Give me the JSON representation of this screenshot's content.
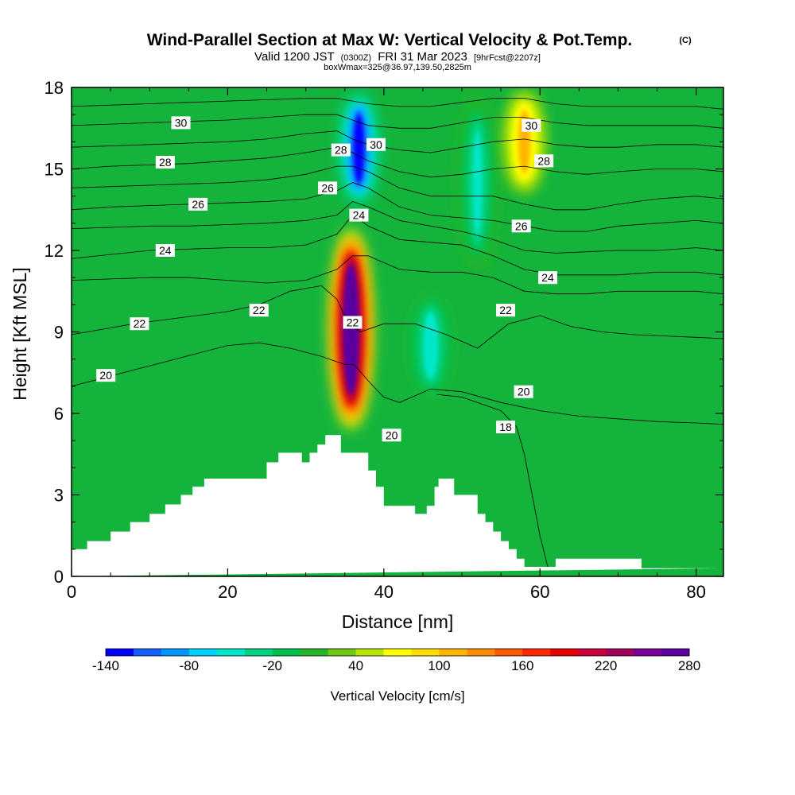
{
  "chart_data": {
    "type": "heatmap",
    "title": "Wind-Parallel Section at Max W: Vertical Velocity & Pot.Temp.",
    "title_mark": "(C)",
    "subtitle_parts": [
      "Valid 1200 JST",
      "(0300Z)",
      "FRI 31 Mar 2023",
      "[9hrFcst@2207z]"
    ],
    "subtitle2": "boxWmax=325@36.97,139.50,2825m",
    "xlabel": "Distance [nm]",
    "ylabel": "Height [Kft MSL]",
    "xlim": [
      0,
      83.5
    ],
    "ylim": [
      0,
      18
    ],
    "x_ticks": [
      0,
      20,
      40,
      60,
      80
    ],
    "x_tick_labels": [
      "0",
      "20",
      "40",
      "60",
      "80"
    ],
    "y_ticks": [
      0,
      3,
      6,
      9,
      12,
      15,
      18
    ],
    "y_tick_labels": [
      "0",
      "3",
      "6",
      "9",
      "12",
      "15",
      "18"
    ],
    "grid": false,
    "colorbar": {
      "label": "Vertical Velocity [cm/s]",
      "tick_values": [
        -140,
        -80,
        -20,
        40,
        100,
        160,
        220,
        280
      ],
      "tick_labels": [
        "-140",
        "-80",
        "-20",
        "40",
        "100",
        "160",
        "220",
        "280"
      ],
      "colors": [
        "#0000ff",
        "#1460ff",
        "#0096ff",
        "#00d2ff",
        "#00e6c8",
        "#00d282",
        "#00c050",
        "#28b428",
        "#6ec814",
        "#b4e600",
        "#ffff00",
        "#ffdc00",
        "#ffb400",
        "#ff8c00",
        "#ff5a00",
        "#ff2800",
        "#e60000",
        "#c8003c",
        "#a0005a",
        "#780096",
        "#5a00a0"
      ]
    },
    "field": {
      "background": "#14b43c",
      "features": [
        {
          "kind": "updraft",
          "x": 35.8,
          "bottom": 5.2,
          "top": 13.0,
          "peak": 325
        },
        {
          "kind": "downdraft",
          "x": 36.8,
          "bottom": 13.5,
          "top": 18.0,
          "peak": -140
        },
        {
          "kind": "downdraft",
          "x": 46,
          "bottom": 6.5,
          "top": 10.5,
          "peak": -60
        },
        {
          "kind": "downdraft",
          "x": 52,
          "bottom": 11,
          "top": 18.0,
          "peak": -50
        },
        {
          "kind": "updraft",
          "x": 58,
          "bottom": 14,
          "top": 18.0,
          "peak": 100
        }
      ]
    },
    "terrain": {
      "x": [
        0,
        2,
        2,
        5,
        5,
        7.5,
        7.5,
        10,
        10,
        12,
        12,
        14,
        14,
        15.5,
        15.5,
        17,
        17,
        25,
        25,
        26.5,
        26.5,
        28,
        28,
        29.5,
        29.5,
        30.5,
        30.5,
        31.5,
        31.5,
        32.5,
        32.5,
        33.5,
        33.5,
        34.5,
        34.5,
        38,
        38,
        39,
        39,
        40,
        40,
        44,
        44,
        45.5,
        45.5,
        46.5,
        46.5,
        47,
        47,
        48,
        48,
        49,
        49,
        52,
        52,
        53,
        53,
        54,
        54,
        55,
        55,
        56,
        56,
        57,
        57,
        58,
        58,
        60,
        60,
        62,
        62,
        73,
        73,
        83,
        83,
        83.5
      ],
      "z": [
        1.0,
        1.0,
        1.3,
        1.3,
        1.65,
        1.65,
        2.0,
        2.0,
        2.3,
        2.3,
        2.65,
        2.65,
        3.0,
        3.0,
        3.3,
        3.3,
        3.6,
        3.6,
        4.2,
        4.2,
        4.55,
        4.55,
        4.55,
        4.55,
        4.2,
        4.2,
        4.55,
        4.55,
        4.85,
        4.85,
        5.2,
        5.2,
        5.2,
        5.2,
        4.55,
        4.55,
        3.9,
        3.9,
        3.3,
        3.3,
        2.6,
        2.6,
        2.3,
        2.3,
        2.6,
        2.6,
        3.3,
        3.3,
        3.6,
        3.6,
        3.6,
        3.6,
        3.0,
        3.0,
        2.3,
        2.3,
        2.0,
        2.0,
        1.65,
        1.65,
        1.3,
        1.3,
        1.0,
        1.0,
        0.65,
        0.65,
        0.35,
        0.35,
        0.35,
        0.35,
        0.65,
        0.65,
        0.3,
        0.3
      ]
    },
    "contours": [
      {
        "level": 18,
        "label": "18",
        "x": [
          61,
          60,
          59,
          58,
          57,
          55,
          50,
          46.8
        ],
        "z": [
          0.35,
          1.5,
          3.0,
          4.5,
          5.5,
          6.1,
          6.6,
          6.7
        ]
      },
      {
        "level": 20,
        "label": "20",
        "x": [
          0,
          4,
          8,
          12,
          16,
          20,
          24,
          28,
          32,
          35,
          36.2,
          38,
          40,
          42,
          46,
          50,
          55,
          60,
          65,
          70,
          75,
          80,
          83.5
        ],
        "z": [
          7.0,
          7.3,
          7.6,
          7.9,
          8.2,
          8.5,
          8.6,
          8.4,
          8.1,
          7.8,
          7.8,
          7.2,
          6.6,
          6.4,
          6.9,
          6.8,
          6.4,
          6.1,
          5.9,
          5.8,
          5.7,
          5.65,
          5.6
        ]
      },
      {
        "level": 22,
        "label": "22",
        "x": [
          0,
          4,
          8,
          12,
          16,
          20,
          24,
          28,
          32,
          34,
          35.5,
          37,
          40,
          44,
          48,
          52,
          56,
          60,
          64,
          68,
          72,
          76,
          80,
          83.5
        ],
        "z": [
          8.9,
          9.1,
          9.3,
          9.45,
          9.6,
          9.75,
          10.0,
          10.5,
          10.7,
          10.2,
          9.3,
          9.0,
          9.3,
          9.3,
          8.9,
          8.4,
          9.3,
          9.6,
          9.2,
          9.0,
          8.9,
          8.85,
          8.8,
          8.75
        ]
      },
      {
        "level": 23,
        "label": "",
        "x": [
          0,
          5,
          10,
          15,
          20,
          25,
          30,
          34,
          36,
          38,
          42,
          46,
          50,
          54,
          58,
          62,
          66,
          70,
          75,
          80,
          83.5
        ],
        "z": [
          10.9,
          10.95,
          11.0,
          11.0,
          10.9,
          10.8,
          10.9,
          11.3,
          11.8,
          11.8,
          11.3,
          11.2,
          11.2,
          11.0,
          10.5,
          10.4,
          10.4,
          10.5,
          10.5,
          10.5,
          10.4
        ]
      },
      {
        "level": 24,
        "label": "24",
        "x": [
          0,
          5,
          10,
          15,
          20,
          25,
          30,
          34,
          36,
          38,
          42,
          46,
          50,
          54,
          58,
          62,
          66,
          70,
          75,
          80,
          83.5
        ],
        "z": [
          11.7,
          11.85,
          12.0,
          12.05,
          12.1,
          12.1,
          12.2,
          12.6,
          13.3,
          12.9,
          12.4,
          12.3,
          12.2,
          11.8,
          11.3,
          11.1,
          11.1,
          11.1,
          11.2,
          11.2,
          11.1
        ]
      },
      {
        "level": 25,
        "label": "",
        "x": [
          0,
          5,
          10,
          15,
          20,
          25,
          30,
          34,
          36,
          38,
          42,
          46,
          50,
          54,
          58,
          62,
          66,
          70,
          75,
          80,
          83.5
        ],
        "z": [
          12.8,
          12.85,
          12.9,
          12.9,
          12.95,
          13.0,
          13.1,
          13.3,
          13.8,
          13.6,
          13.1,
          12.9,
          12.7,
          12.4,
          12.0,
          11.9,
          11.95,
          12.0,
          12.0,
          12.1,
          12.0
        ]
      },
      {
        "level": 26,
        "label": "26",
        "x": [
          0,
          5,
          10,
          15,
          20,
          25,
          30,
          34,
          36,
          38,
          42,
          46,
          50,
          54,
          58,
          62,
          66,
          70,
          75,
          80,
          83.5
        ],
        "z": [
          13.5,
          13.6,
          13.65,
          13.7,
          13.75,
          13.8,
          13.9,
          14.2,
          14.5,
          14.3,
          13.6,
          13.3,
          13.2,
          13.1,
          12.9,
          12.7,
          12.7,
          12.9,
          13.0,
          13.1,
          13.0
        ]
      },
      {
        "level": 27,
        "label": "",
        "x": [
          0,
          5,
          10,
          15,
          20,
          25,
          30,
          34,
          36,
          38,
          42,
          46,
          50,
          54,
          58,
          62,
          66,
          70,
          75,
          80,
          83.5
        ],
        "z": [
          14.3,
          14.35,
          14.4,
          14.45,
          14.5,
          14.6,
          14.8,
          15.1,
          15.1,
          14.9,
          14.3,
          14.0,
          14.0,
          14.0,
          13.7,
          13.5,
          13.5,
          13.7,
          13.9,
          14.0,
          13.9
        ]
      },
      {
        "level": 28,
        "label": "28",
        "x": [
          0,
          5,
          10,
          15,
          20,
          25,
          30,
          34,
          36,
          38,
          42,
          46,
          50,
          54,
          58,
          62,
          66,
          70,
          75,
          80,
          83.5
        ],
        "z": [
          15.0,
          15.1,
          15.15,
          15.2,
          15.3,
          15.4,
          15.6,
          15.8,
          15.6,
          15.3,
          14.9,
          14.7,
          14.8,
          15.0,
          15.1,
          14.9,
          14.8,
          14.9,
          15.0,
          15.0,
          14.9
        ]
      },
      {
        "level": 29,
        "label": "",
        "x": [
          0,
          5,
          10,
          15,
          20,
          25,
          30,
          34,
          36,
          38,
          42,
          46,
          50,
          54,
          58,
          62,
          66,
          70,
          75,
          80,
          83.5
        ],
        "z": [
          15.8,
          15.85,
          15.9,
          15.95,
          16.0,
          16.1,
          16.3,
          16.4,
          16.1,
          15.9,
          15.7,
          15.6,
          15.8,
          16.0,
          16.1,
          15.9,
          15.8,
          15.8,
          15.9,
          15.9,
          15.8
        ]
      },
      {
        "level": 30,
        "label": "30",
        "x": [
          0,
          5,
          10,
          15,
          20,
          25,
          30,
          34,
          36,
          38,
          42,
          46,
          50,
          54,
          58,
          62,
          66,
          70,
          75,
          80,
          83.5
        ],
        "z": [
          16.6,
          16.65,
          16.7,
          16.75,
          16.8,
          16.9,
          17.0,
          17.0,
          16.8,
          16.6,
          16.5,
          16.5,
          16.7,
          16.9,
          16.9,
          16.7,
          16.6,
          16.6,
          16.6,
          16.6,
          16.5
        ]
      },
      {
        "level": 31,
        "label": "",
        "x": [
          0,
          5,
          10,
          15,
          20,
          25,
          30,
          34,
          36,
          38,
          42,
          46,
          50,
          54,
          58,
          62,
          66,
          70,
          75,
          80,
          83.5
        ],
        "z": [
          17.3,
          17.35,
          17.4,
          17.45,
          17.5,
          17.55,
          17.6,
          17.6,
          17.5,
          17.4,
          17.3,
          17.3,
          17.45,
          17.6,
          17.6,
          17.4,
          17.3,
          17.3,
          17.3,
          17.3,
          17.2
        ]
      }
    ],
    "contour_labels": [
      {
        "text": "30",
        "x": 14.0,
        "z": 16.7
      },
      {
        "text": "28",
        "x": 12.0,
        "z": 15.25
      },
      {
        "text": "26",
        "x": 16.2,
        "z": 13.7
      },
      {
        "text": "24",
        "x": 12.0,
        "z": 12.0
      },
      {
        "text": "22",
        "x": 8.7,
        "z": 9.3
      },
      {
        "text": "20",
        "x": 4.4,
        "z": 7.4
      },
      {
        "text": "22",
        "x": 24.0,
        "z": 9.8
      },
      {
        "text": "26",
        "x": 32.8,
        "z": 14.3
      },
      {
        "text": "28",
        "x": 34.5,
        "z": 15.7
      },
      {
        "text": "24",
        "x": 36.8,
        "z": 13.3
      },
      {
        "text": "30",
        "x": 39.0,
        "z": 15.9
      },
      {
        "text": "22",
        "x": 36.0,
        "z": 9.35
      },
      {
        "text": "20",
        "x": 41.0,
        "z": 5.2
      },
      {
        "text": "30",
        "x": 58.9,
        "z": 16.6
      },
      {
        "text": "28",
        "x": 60.5,
        "z": 15.3
      },
      {
        "text": "26",
        "x": 57.6,
        "z": 12.9
      },
      {
        "text": "22",
        "x": 55.6,
        "z": 9.8
      },
      {
        "text": "24",
        "x": 61.0,
        "z": 11.0
      },
      {
        "text": "20",
        "x": 57.9,
        "z": 6.8
      },
      {
        "text": "18",
        "x": 55.6,
        "z": 5.5
      }
    ]
  }
}
